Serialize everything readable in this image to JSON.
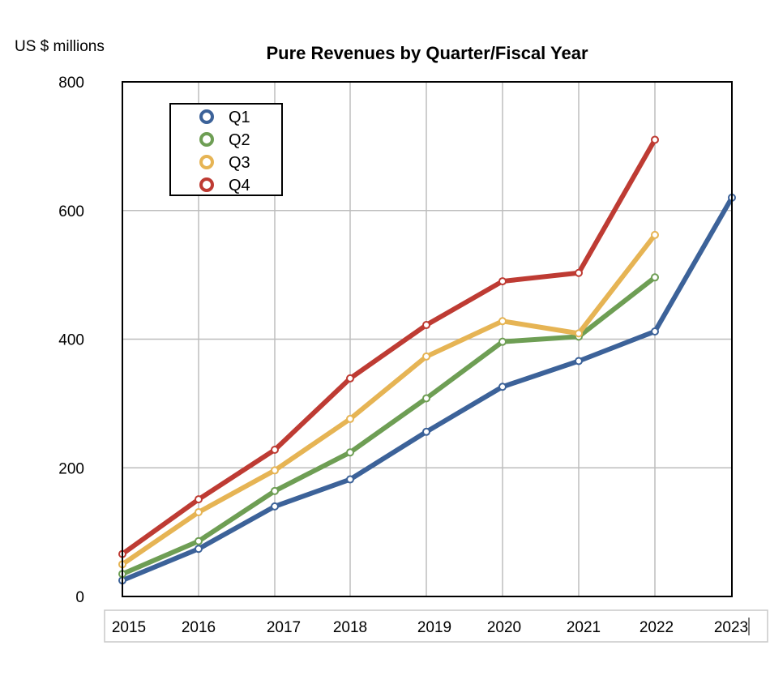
{
  "chart_data": {
    "type": "line",
    "title": "Pure Revenues by Quarter/Fiscal Year",
    "unit_label": "US $ millions",
    "xlabel": "",
    "ylabel": "",
    "x": [
      "2015",
      "2016",
      "2017",
      "2018",
      "2019",
      "2020",
      "2021",
      "2022",
      "2023"
    ],
    "ylim": [
      0,
      800
    ],
    "yticks": [
      "0",
      "200",
      "400",
      "600",
      "800"
    ],
    "grid": true,
    "legend_position": "top-left",
    "series": [
      {
        "name": "Q1",
        "color": "#3c6299",
        "values": [
          25,
          74,
          140,
          182,
          256,
          326,
          366,
          412,
          620
        ]
      },
      {
        "name": "Q2",
        "color": "#6e9e54",
        "values": [
          35,
          86,
          164,
          224,
          308,
          396,
          404,
          496,
          null
        ]
      },
      {
        "name": "Q3",
        "color": "#e6b454",
        "values": [
          50,
          131,
          196,
          276,
          373,
          428,
          409,
          562,
          null
        ]
      },
      {
        "name": "Q4",
        "color": "#be3b33",
        "values": [
          66,
          151,
          228,
          339,
          422,
          490,
          503,
          710,
          null
        ]
      }
    ]
  }
}
